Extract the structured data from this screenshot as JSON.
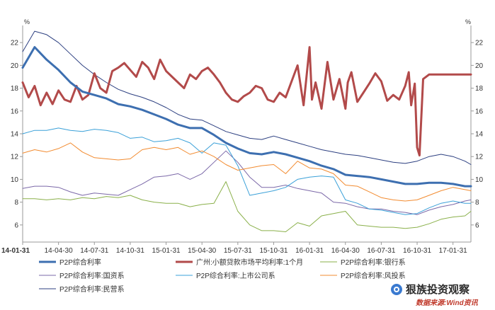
{
  "chart_data": {
    "type": "line",
    "title": "",
    "unit_left": "%",
    "unit_right": "%",
    "ylim": [
      4.5,
      23.5
    ],
    "yticks": [
      6,
      8,
      10,
      12,
      14,
      16,
      18,
      20,
      22
    ],
    "ytick_labels": [
      "6",
      "8",
      "10",
      "12",
      "14",
      "16",
      "18",
      "20",
      "22"
    ],
    "x_range": [
      0,
      37.5
    ],
    "x_tick_positions": [
      0,
      3,
      6,
      9,
      12,
      15,
      18,
      21,
      24,
      27,
      30,
      33,
      36
    ],
    "x_tick_labels": [
      "14-01-31",
      "14-04-30",
      "14-07-31",
      "14-10-31",
      "15-01-31",
      "15-04-30",
      "15-07-31",
      "15-10-31",
      "16-01-31",
      "16-04-30",
      "16-07-31",
      "16-10-31",
      "17-01-31"
    ],
    "series": [
      {
        "name": "P2P综合利率",
        "color": "#3d6fb0",
        "width": 3,
        "x": [
          0,
          1,
          2,
          3,
          4,
          5,
          6,
          7,
          8,
          9,
          10,
          11,
          12,
          13,
          14,
          15,
          16,
          17,
          18,
          19,
          20,
          21,
          22,
          23,
          24,
          25,
          26,
          27,
          28,
          29,
          30,
          31,
          32,
          33,
          34,
          35,
          36,
          37,
          37.5
        ],
        "y": [
          19.8,
          21.6,
          20.5,
          19.6,
          18.5,
          17.7,
          17.4,
          17.1,
          16.6,
          16.4,
          16.1,
          15.7,
          15.3,
          14.8,
          14.5,
          14.5,
          13.9,
          13.2,
          12.7,
          12.3,
          12.2,
          12.4,
          12.2,
          11.9,
          11.6,
          11.2,
          10.9,
          10.4,
          10.3,
          10.2,
          10.0,
          9.8,
          9.6,
          9.6,
          9.7,
          9.7,
          9.6,
          9.4,
          9.4
        ]
      },
      {
        "name": "广州:小额贷款市场平均利率:1个月",
        "color": "#b24a4a",
        "width": 3,
        "x": [
          0,
          0.5,
          1,
          1.5,
          2,
          2.5,
          3,
          3.5,
          4,
          4.5,
          5,
          5.5,
          6,
          6.5,
          7,
          7.5,
          8,
          8.5,
          9,
          9.5,
          10,
          10.5,
          11,
          11.5,
          12,
          12.5,
          13,
          13.5,
          14,
          14.5,
          15,
          15.5,
          16,
          16.5,
          17,
          17.5,
          18,
          18.5,
          19,
          19.5,
          20,
          20.5,
          21,
          21.5,
          22,
          22.5,
          23,
          23.5,
          24,
          24.2,
          24.5,
          25,
          25.5,
          26,
          26.5,
          27,
          27.2,
          27.5,
          28,
          28.5,
          29,
          29.5,
          30,
          30.5,
          31,
          31.5,
          32,
          32.3,
          32.5,
          32.8,
          33,
          33.2,
          33.5,
          34,
          35,
          36,
          37,
          37.5
        ],
        "y": [
          18.5,
          17.2,
          18.2,
          16.5,
          17.6,
          16.6,
          17.8,
          17.0,
          16.8,
          18.2,
          17.0,
          17.4,
          19.3,
          18.0,
          17.6,
          19.5,
          19.8,
          20.2,
          19.6,
          19.0,
          20.3,
          19.8,
          18.8,
          20.5,
          19.5,
          19.0,
          18.5,
          18.0,
          19.2,
          18.8,
          19.5,
          19.8,
          19.2,
          18.5,
          17.6,
          17.0,
          16.8,
          17.3,
          17.6,
          18.2,
          18.0,
          17.0,
          16.8,
          17.6,
          17.2,
          18.6,
          20.0,
          16.5,
          21.6,
          17.0,
          18.5,
          16.2,
          20.3,
          17.0,
          18.8,
          16.2,
          18.5,
          19.4,
          16.8,
          17.6,
          18.4,
          19.3,
          18.6,
          16.9,
          17.4,
          17.0,
          18.2,
          19.4,
          16.5,
          18.4,
          12.8,
          12.1,
          18.8,
          19.2,
          19.2,
          19.2,
          19.2,
          19.2
        ]
      },
      {
        "name": "P2P综合利率:银行系",
        "color": "#8ab04a",
        "width": 1,
        "x": [
          0,
          1,
          2,
          3,
          4,
          5,
          6,
          7,
          8,
          9,
          10,
          11,
          12,
          13,
          14,
          15,
          16,
          17,
          18,
          19,
          20,
          21,
          22,
          23,
          24,
          25,
          26,
          27,
          28,
          29,
          30,
          31,
          32,
          33,
          34,
          35,
          36,
          37,
          37.5
        ],
        "y": [
          8.3,
          8.3,
          8.2,
          8.3,
          8.2,
          8.4,
          8.3,
          8.5,
          8.4,
          8.6,
          8.2,
          8.0,
          7.9,
          7.9,
          7.6,
          7.8,
          7.9,
          9.8,
          7.2,
          6.0,
          5.5,
          5.5,
          5.4,
          6.2,
          5.9,
          6.8,
          7.0,
          7.2,
          6.0,
          5.9,
          5.8,
          5.8,
          5.7,
          5.8,
          6.1,
          6.5,
          6.7,
          6.8,
          7.2
        ]
      },
      {
        "name": "P2P综合利率:国资系",
        "color": "#7b68a8",
        "width": 1,
        "x": [
          0,
          1,
          2,
          3,
          4,
          5,
          6,
          7,
          8,
          9,
          10,
          11,
          12,
          13,
          14,
          15,
          16,
          17,
          18,
          19,
          20,
          21,
          22,
          23,
          24,
          25,
          26,
          27,
          28,
          29,
          30,
          31,
          32,
          33,
          34,
          35,
          36,
          37,
          37.5
        ],
        "y": [
          9.2,
          9.4,
          9.4,
          9.3,
          8.9,
          8.6,
          8.8,
          8.7,
          8.6,
          9.1,
          9.6,
          10.2,
          10.3,
          10.5,
          10.0,
          10.5,
          11.5,
          12.5,
          11.5,
          10.2,
          9.3,
          9.3,
          9.5,
          9.2,
          9.0,
          8.8,
          8.0,
          7.9,
          7.6,
          7.4,
          7.4,
          7.2,
          7.1,
          6.9,
          7.3,
          7.6,
          7.8,
          8.1,
          8.2
        ]
      },
      {
        "name": "P2P综合利率:上市公司系",
        "color": "#3aa0d8",
        "width": 1,
        "x": [
          0,
          1,
          2,
          3,
          4,
          5,
          6,
          7,
          8,
          9,
          10,
          11,
          12,
          13,
          14,
          15,
          16,
          17,
          18,
          19,
          20,
          21,
          22,
          23,
          24,
          25,
          26,
          27,
          28,
          29,
          30,
          31,
          32,
          33,
          34,
          35,
          36,
          37,
          37.5
        ],
        "y": [
          14.0,
          14.3,
          14.3,
          14.5,
          14.3,
          14.2,
          14.4,
          14.3,
          14.1,
          13.6,
          13.7,
          13.3,
          13.4,
          13.6,
          13.2,
          12.3,
          13.2,
          13.0,
          11.2,
          8.6,
          8.8,
          9.0,
          9.3,
          10.0,
          10.2,
          10.3,
          10.2,
          8.2,
          7.9,
          7.4,
          7.3,
          7.1,
          6.9,
          7.0,
          7.5,
          7.9,
          8.1,
          7.9,
          7.9
        ]
      },
      {
        "name": "P2P综合利率:风投系",
        "color": "#f28b30",
        "width": 1,
        "x": [
          0,
          1,
          2,
          3,
          4,
          5,
          6,
          7,
          8,
          9,
          10,
          11,
          12,
          13,
          14,
          15,
          16,
          17,
          18,
          19,
          20,
          21,
          22,
          23,
          24,
          25,
          26,
          27,
          28,
          29,
          30,
          31,
          32,
          33,
          34,
          35,
          36,
          37,
          37.5
        ],
        "y": [
          12.3,
          12.6,
          12.4,
          12.7,
          13.2,
          12.4,
          11.9,
          11.8,
          11.7,
          11.8,
          12.6,
          12.8,
          12.6,
          12.8,
          12.2,
          12.5,
          12.0,
          11.3,
          10.8,
          11.0,
          11.2,
          11.3,
          10.5,
          11.6,
          11.0,
          10.9,
          10.5,
          9.5,
          9.4,
          8.9,
          8.4,
          8.2,
          8.1,
          8.2,
          8.6,
          9.0,
          9.3,
          9.1,
          9.0
        ]
      },
      {
        "name": "P2P综合利率:民营系",
        "color": "#2c3f80",
        "width": 1,
        "x": [
          0,
          1,
          2,
          3,
          4,
          5,
          6,
          7,
          8,
          9,
          10,
          11,
          12,
          13,
          14,
          15,
          16,
          17,
          18,
          19,
          20,
          21,
          22,
          23,
          24,
          25,
          26,
          27,
          28,
          29,
          30,
          31,
          32,
          33,
          34,
          35,
          36,
          37,
          37.5
        ],
        "y": [
          21.2,
          23.0,
          22.7,
          22.0,
          21.0,
          20.0,
          19.2,
          18.5,
          17.9,
          17.5,
          17.2,
          16.8,
          16.3,
          15.7,
          15.3,
          15.2,
          14.7,
          14.2,
          13.9,
          13.6,
          13.5,
          13.8,
          13.5,
          13.2,
          12.9,
          12.6,
          12.4,
          12.2,
          12.1,
          11.9,
          11.7,
          11.5,
          11.4,
          11.6,
          12.0,
          12.2,
          12.0,
          11.6,
          11.3
        ]
      }
    ]
  },
  "legend": {
    "items": [
      {
        "label": "P2P综合利率",
        "color": "#3d6fb0"
      },
      {
        "label": "广州:小额贷款市场平均利率:1个月",
        "color": "#b24a4a"
      },
      {
        "label": "P2P综合利率:银行系",
        "color": "#8ab04a"
      },
      {
        "label": "P2P综合利率:国资系",
        "color": "#7b68a8"
      },
      {
        "label": "P2P综合利率:上市公司系",
        "color": "#3aa0d8"
      },
      {
        "label": "P2P综合利率:风投系",
        "color": "#f28b30"
      },
      {
        "label": "P2P综合利率:民营系",
        "color": "#2c3f80"
      }
    ]
  },
  "watermark": {
    "title": "狠族投资观察",
    "source": "数据来源:Wind资讯"
  }
}
